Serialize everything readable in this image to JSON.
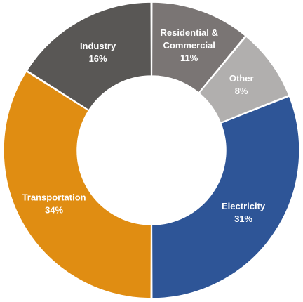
{
  "chart_data": {
    "type": "pie",
    "donut": true,
    "title": "",
    "legend": "none",
    "slices": [
      {
        "label": [
          "Residential &",
          "Commercial"
        ],
        "percent_label": "11%",
        "value": 11,
        "color": "#7a7574"
      },
      {
        "label": [
          "Other"
        ],
        "percent_label": "8%",
        "value": 8,
        "color": "#b1afae"
      },
      {
        "label": [
          "Electricity"
        ],
        "percent_label": "31%",
        "value": 31,
        "color": "#2e5597"
      },
      {
        "label": [
          "Transportation"
        ],
        "percent_label": "34%",
        "value": 34,
        "color": "#e08d12"
      },
      {
        "label": [
          "Industry"
        ],
        "percent_label": "16%",
        "value": 16,
        "color": "#595755"
      }
    ]
  }
}
